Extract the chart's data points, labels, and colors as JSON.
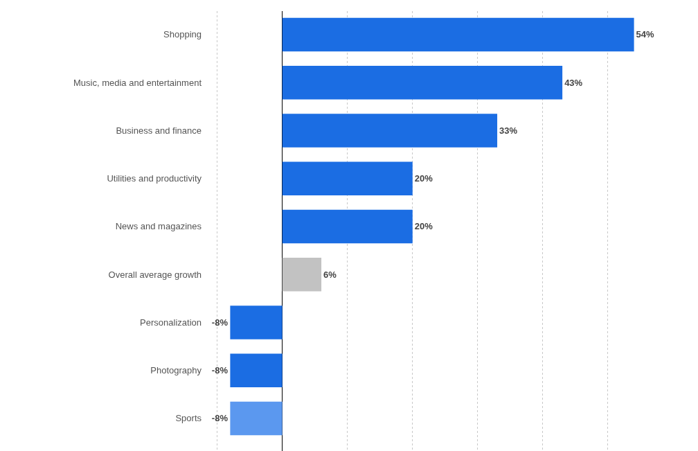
{
  "chart_data": {
    "type": "bar",
    "orientation": "horizontal",
    "categories": [
      "Shopping",
      "Music, media and entertainment",
      "Business and finance",
      "Utilities and productivity",
      "News and magazines",
      "Overall average growth",
      "Personalization",
      "Photography",
      "Sports"
    ],
    "values": [
      54,
      43,
      33,
      20,
      20,
      6,
      -8,
      -8,
      -8
    ],
    "value_labels": [
      "54%",
      "43%",
      "33%",
      "20%",
      "20%",
      "6%",
      "-8%",
      "-8%",
      "-8%"
    ],
    "colors": [
      "#1b6de3",
      "#1b6de3",
      "#1b6de3",
      "#1b6de3",
      "#1b6de3",
      "#c2c2c2",
      "#1b6de3",
      "#1b6de3",
      "#5b98ef"
    ],
    "tick_labels": "y",
    "grid": "x",
    "legend": false
  }
}
